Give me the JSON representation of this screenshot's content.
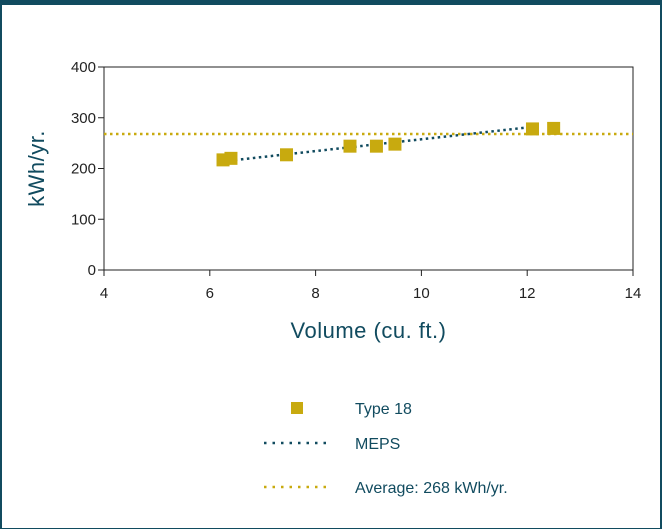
{
  "chart_data": {
    "type": "scatter",
    "xlabel": "Volume (cu. ft.)",
    "ylabel": "kWh/yr.",
    "xlim": [
      4,
      14
    ],
    "ylim": [
      0,
      400
    ],
    "x_ticks": [
      4,
      6,
      8,
      10,
      12,
      14
    ],
    "y_ticks": [
      0,
      100,
      200,
      300,
      400
    ],
    "grid": false,
    "legend_position": "bottom",
    "series": [
      {
        "name": "Type 18",
        "type": "scatter",
        "marker": "square",
        "color": "#c8aa0f",
        "points": [
          {
            "x": 6.25,
            "y": 217
          },
          {
            "x": 6.4,
            "y": 220
          },
          {
            "x": 7.45,
            "y": 227
          },
          {
            "x": 8.65,
            "y": 244
          },
          {
            "x": 9.15,
            "y": 244
          },
          {
            "x": 9.5,
            "y": 248
          },
          {
            "x": 12.1,
            "y": 278
          },
          {
            "x": 12.5,
            "y": 279
          }
        ]
      },
      {
        "name": "MEPS",
        "type": "line",
        "style": "dotted",
        "color": "#114b5f",
        "points": [
          {
            "x": 6.25,
            "y": 214
          },
          {
            "x": 12.1,
            "y": 282
          }
        ]
      },
      {
        "name": "Average: 268 kWh/yr.",
        "type": "hline",
        "style": "dotted",
        "color": "#c8aa0f",
        "y": 268
      }
    ]
  }
}
